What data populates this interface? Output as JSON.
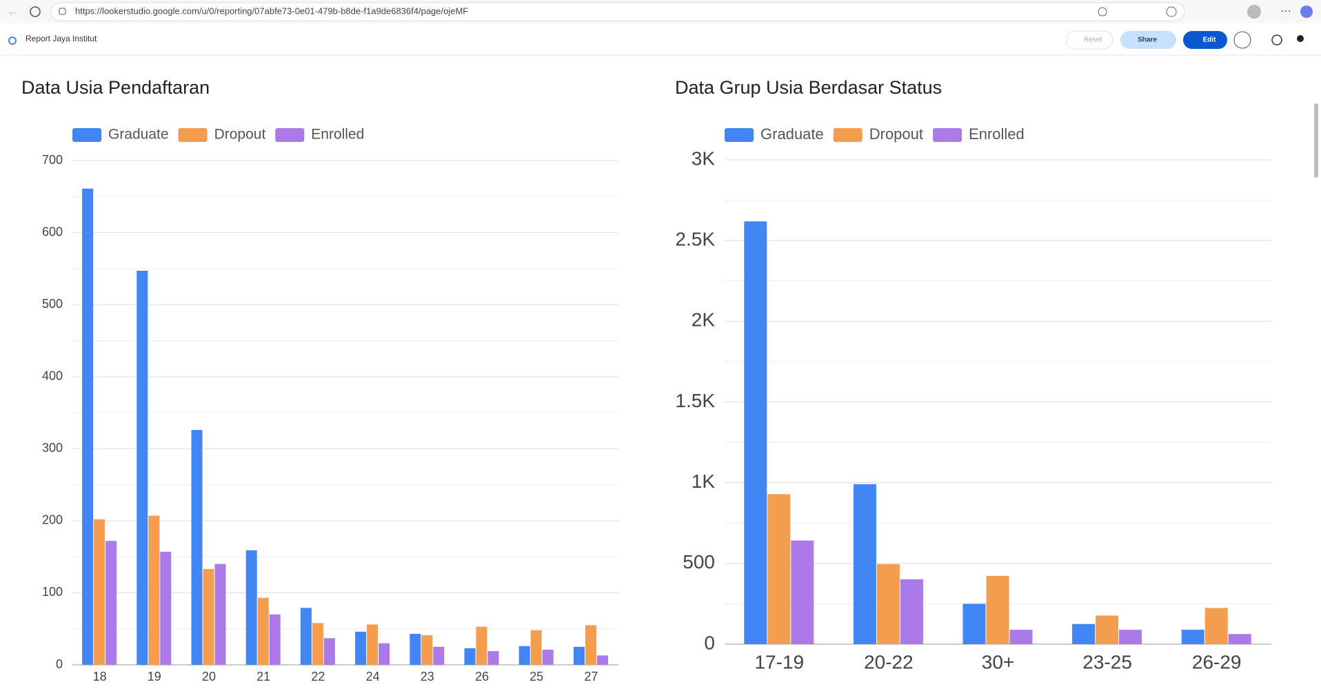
{
  "browser": {
    "url": "https://lookerstudio.google.com/u/0/reporting/07abfe73-0e01-479b-b8de-f1a9de6836f4/page/ojeMF"
  },
  "header": {
    "report_name": "Report Jaya Institut",
    "buttons": [
      "Reset",
      "Share",
      "Edit"
    ]
  },
  "chart_data": [
    {
      "type": "bar",
      "title": "Data Usia Pendaftaran",
      "categories": [
        "18",
        "19",
        "20",
        "21",
        "22",
        "24",
        "23",
        "26",
        "25",
        "27"
      ],
      "series": [
        {
          "name": "Graduate",
          "color": "#4285f4",
          "values": [
            661,
            547,
            326,
            159,
            79,
            46,
            43,
            23,
            26,
            25
          ]
        },
        {
          "name": "Dropout",
          "color": "#f59d4f",
          "values": [
            202,
            207,
            133,
            93,
            58,
            56,
            41,
            53,
            48,
            55
          ]
        },
        {
          "name": "Enrolled",
          "color": "#ac7ae8",
          "values": [
            172,
            157,
            140,
            70,
            37,
            30,
            25,
            19,
            21,
            13
          ]
        }
      ],
      "ylim": [
        0,
        700
      ],
      "yticks": [
        0,
        100,
        200,
        300,
        400,
        500,
        600,
        700
      ],
      "grid": true,
      "minor_grid": true,
      "legend": "top-left"
    },
    {
      "type": "bar",
      "title": "Data Grup Usia Berdasar Status",
      "categories": [
        "17-19",
        "20-22",
        "30+",
        "23-25",
        "26-29"
      ],
      "series": [
        {
          "name": "Graduate",
          "color": "#4285f4",
          "values": [
            2619,
            991,
            250,
            125,
            89
          ]
        },
        {
          "name": "Dropout",
          "color": "#f59d4f",
          "values": [
            929,
            496,
            423,
            177,
            224
          ]
        },
        {
          "name": "Enrolled",
          "color": "#ac7ae8",
          "values": [
            642,
            402,
            89,
            89,
            63
          ]
        }
      ],
      "ylim": [
        0,
        3000
      ],
      "yticks": [
        0,
        500,
        {
          "value": 1000,
          "label": "1K"
        },
        {
          "value": 1500,
          "label": "1.5K"
        },
        {
          "value": 2000,
          "label": "2K"
        },
        {
          "value": 2500,
          "label": "2.5K"
        },
        {
          "value": 3000,
          "label": "3K"
        }
      ],
      "grid": true,
      "minor_grid": true,
      "legend": "top-left"
    }
  ]
}
